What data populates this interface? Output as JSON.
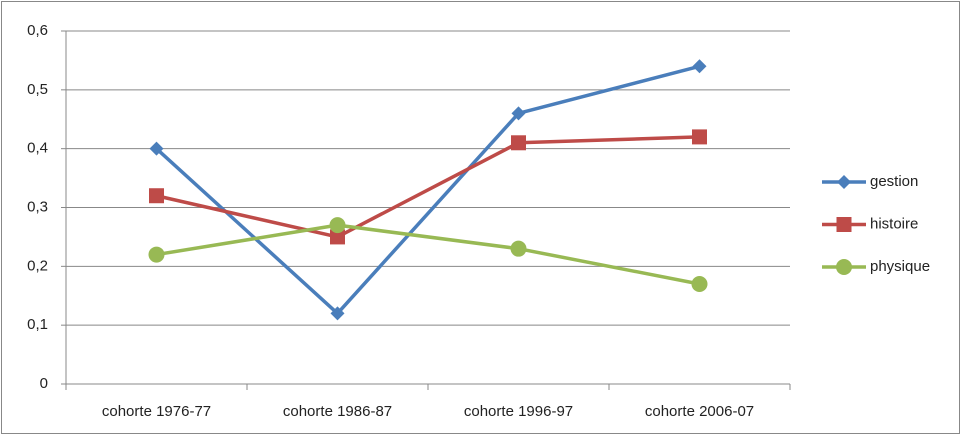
{
  "chart_data": {
    "type": "line",
    "categories": [
      "cohorte 1976-77",
      "cohorte 1986-87",
      "cohorte 1996-97",
      "cohorte 2006-07"
    ],
    "series": [
      {
        "name": "gestion",
        "color": "#4a7ebb",
        "marker": "diamond",
        "values": [
          0.4,
          0.12,
          0.46,
          0.54
        ]
      },
      {
        "name": "histoire",
        "color": "#be4b48",
        "marker": "square",
        "values": [
          0.32,
          0.25,
          0.41,
          0.42
        ]
      },
      {
        "name": "physique",
        "color": "#98b954",
        "marker": "circle",
        "values": [
          0.22,
          0.27,
          0.23,
          0.17
        ]
      }
    ],
    "ylim": [
      0,
      0.6
    ],
    "yticks": [
      0,
      {
        "value": 0.1,
        "label": "0,1"
      },
      {
        "value": 0.2,
        "label": "0,2"
      },
      {
        "value": 0.3,
        "label": "0,3"
      },
      {
        "value": 0.4,
        "label": "0,4"
      },
      {
        "value": 0.5,
        "label": "0,5"
      },
      {
        "value": 0.6,
        "label": "0,6"
      }
    ],
    "grid": true,
    "legend": "right"
  }
}
